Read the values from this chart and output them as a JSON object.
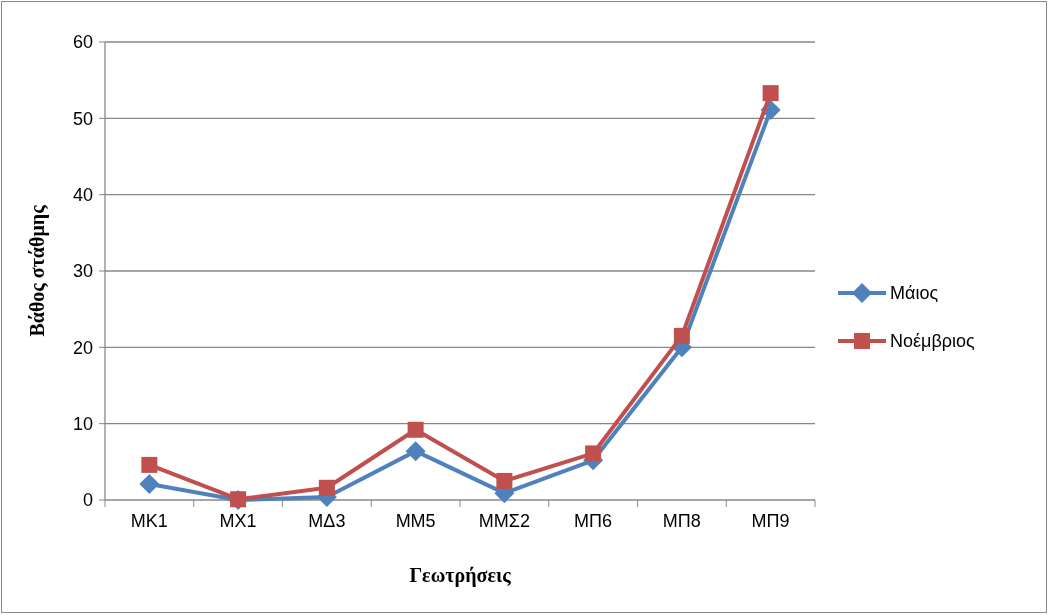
{
  "chart_data": {
    "type": "line",
    "xlabel": "Γεωτρήσεις",
    "ylabel": "Βάθος στάθμης",
    "categories": [
      "ΜΚ1",
      "ΜΧ1",
      "ΜΔ3",
      "ΜΜ5",
      "ΜΜΣ2",
      "ΜΠ6",
      "ΜΠ8",
      "ΜΠ9"
    ],
    "series": [
      {
        "name": "Μάιος",
        "color": "#4f81bd",
        "marker": "diamond",
        "values": [
          2.1,
          0,
          0.4,
          6.4,
          0.9,
          5.2,
          20,
          51.1
        ]
      },
      {
        "name": "Νοέμβριος",
        "color": "#c0504d",
        "marker": "square",
        "values": [
          4.6,
          0.1,
          1.6,
          9.2,
          2.5,
          6.1,
          21.5,
          53.3
        ]
      }
    ],
    "ylim": [
      0,
      60
    ],
    "yticks": [
      0,
      10,
      20,
      30,
      40,
      50,
      60
    ],
    "grid": "y",
    "legend": "right"
  }
}
